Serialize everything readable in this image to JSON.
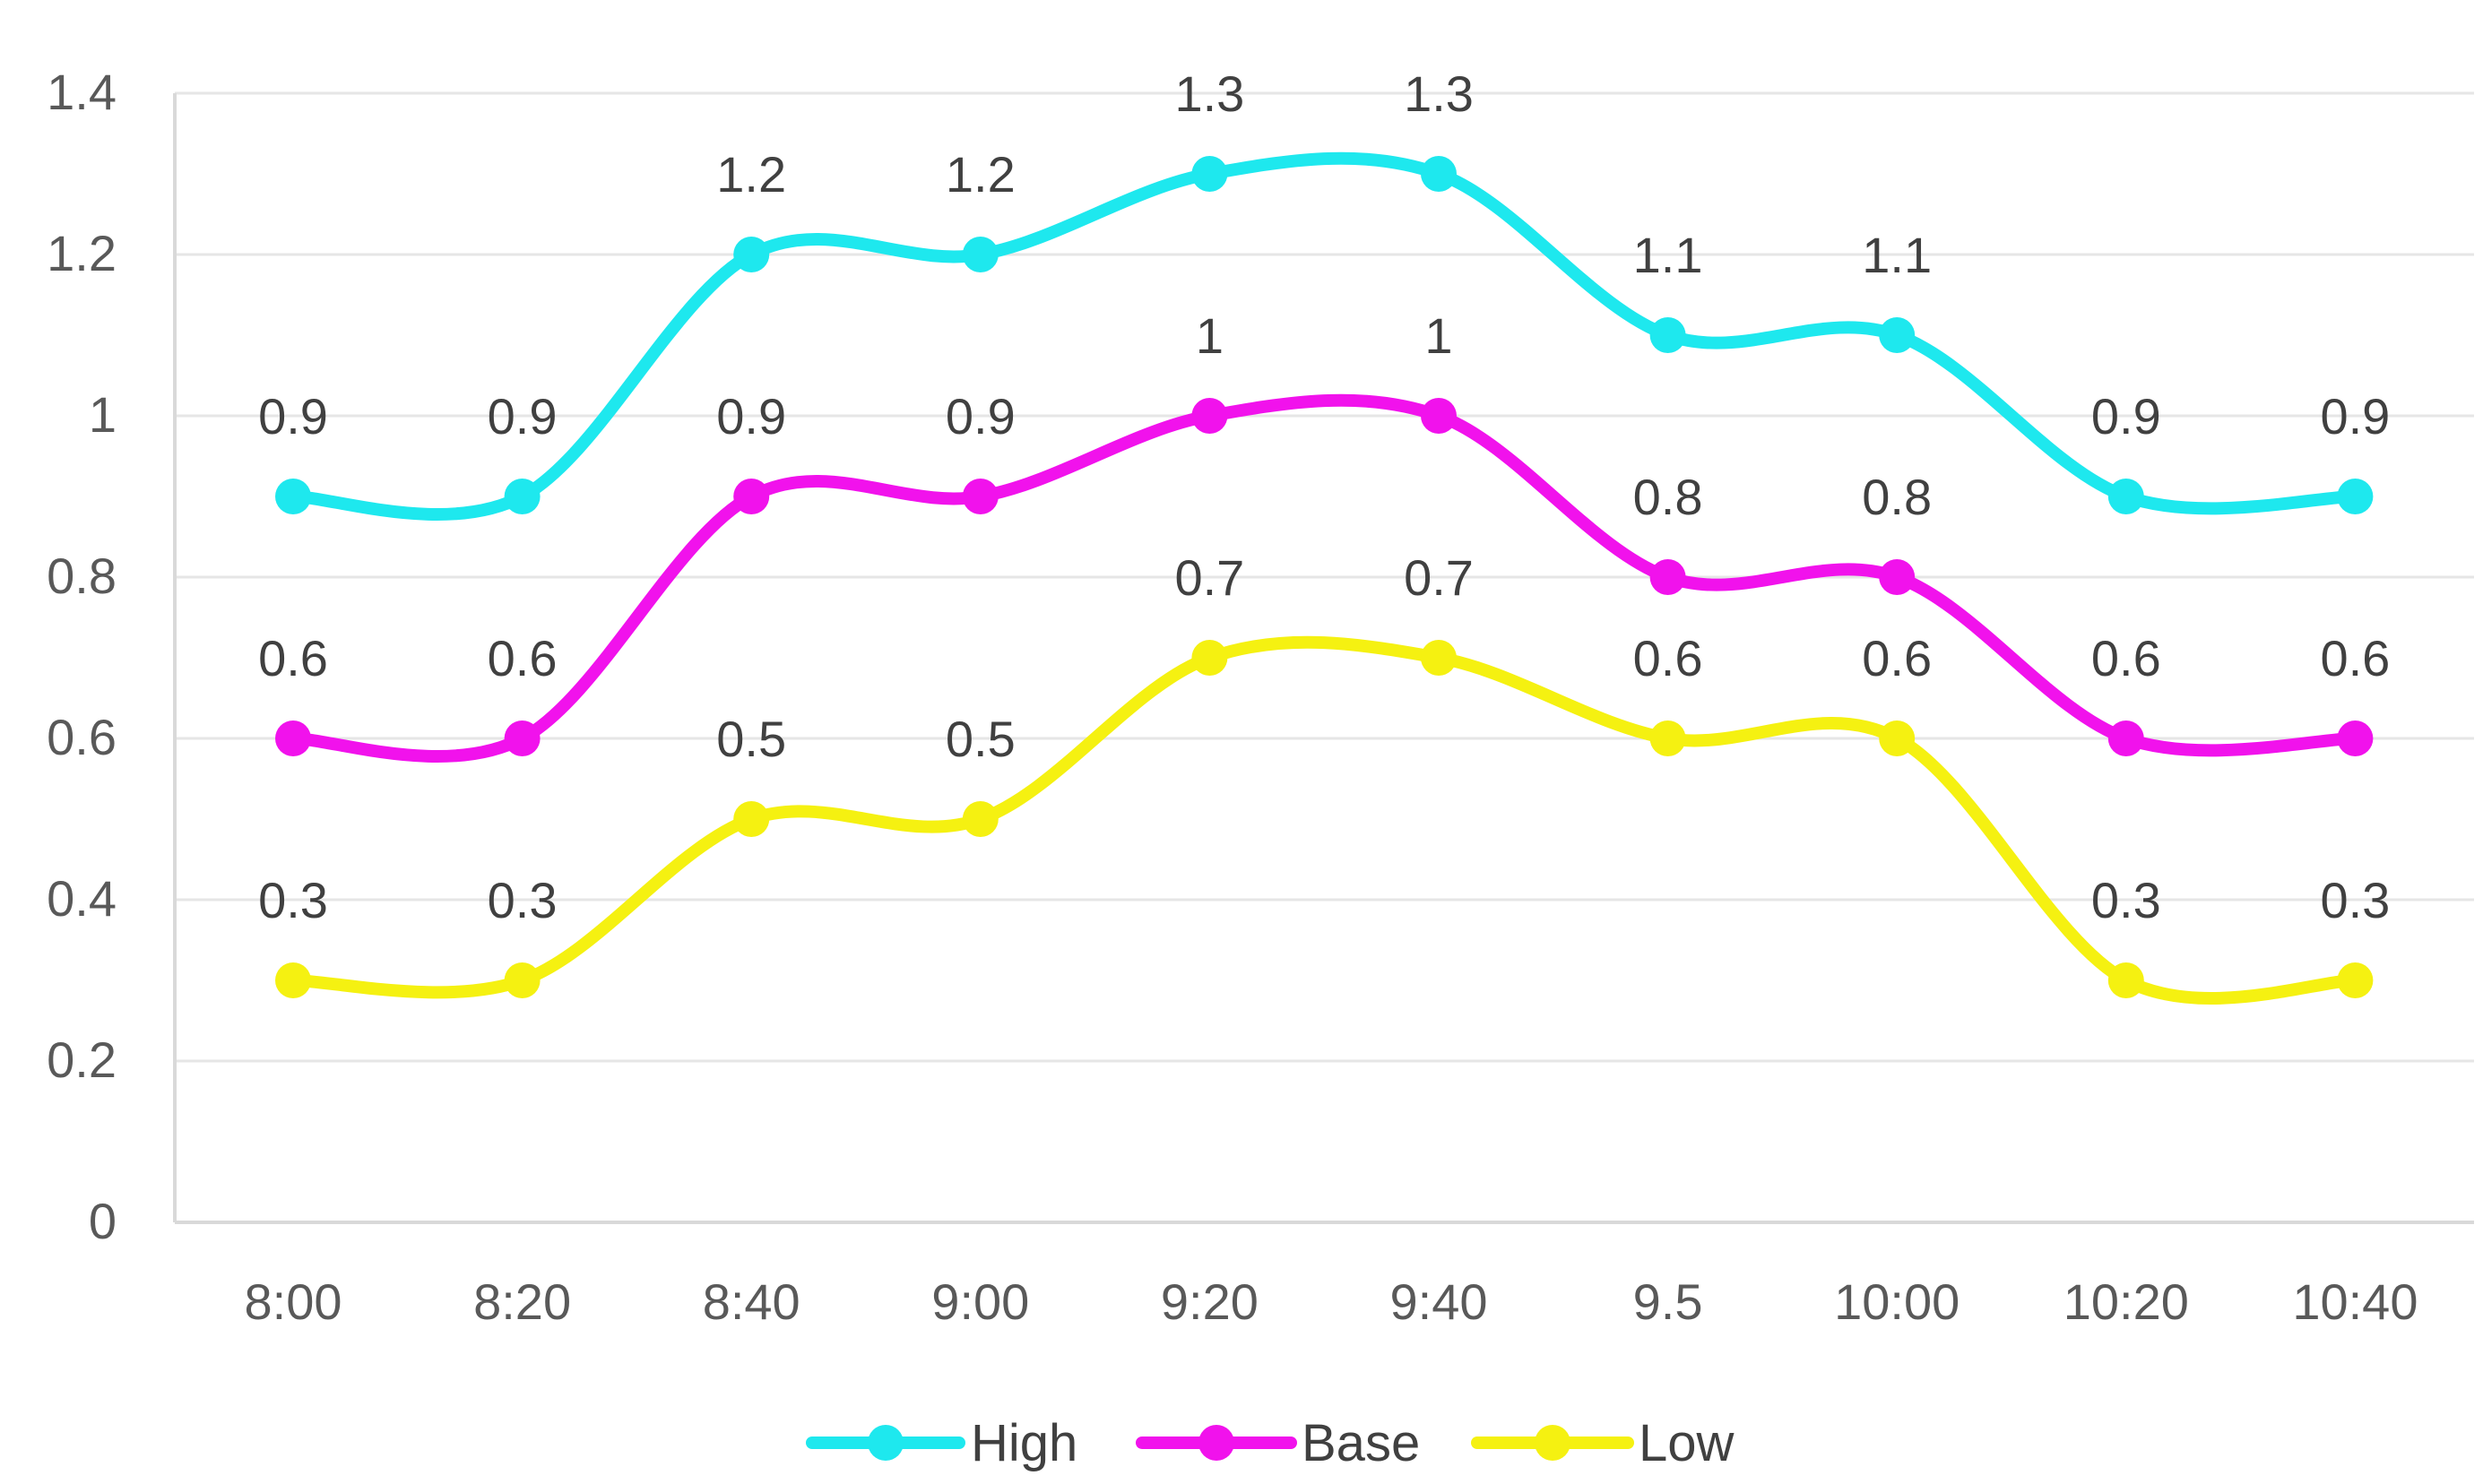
{
  "chart_data": {
    "type": "line",
    "title": "",
    "xlabel": "",
    "ylabel": "",
    "categories": [
      "8:00",
      "8:20",
      "8:40",
      "9:00",
      "9:20",
      "9:40",
      "9.5",
      "10:00",
      "10:20",
      "10:40"
    ],
    "ylim": [
      0,
      1.4
    ],
    "yticks": [
      "0",
      "0.2",
      "0.4",
      "0.6",
      "0.8",
      "1",
      "1.2",
      "1.4"
    ],
    "grid": "horizontal",
    "smooth": true,
    "legend_position": "bottom",
    "series": [
      {
        "name": "High",
        "color": "#1EE8EE",
        "values": [
          0.9,
          0.9,
          1.2,
          1.2,
          1.3,
          1.3,
          1.1,
          1.1,
          0.9,
          0.9
        ],
        "labels": [
          "0.9",
          "0.9",
          "1.2",
          "1.2",
          "1.3",
          "1.3",
          "1.1",
          "1.1",
          "0.9",
          "0.9"
        ]
      },
      {
        "name": "Base",
        "color": "#F112EC",
        "values": [
          0.6,
          0.6,
          0.9,
          0.9,
          1,
          1,
          0.8,
          0.8,
          0.6,
          0.6
        ],
        "labels": [
          "0.6",
          "0.6",
          "0.9",
          "0.9",
          "1",
          "1",
          "0.8",
          "0.8",
          "0.6",
          "0.6"
        ]
      },
      {
        "name": "Low",
        "color": "#F5F111",
        "values": [
          0.3,
          0.3,
          0.5,
          0.5,
          0.7,
          0.7,
          0.6,
          0.6,
          0.3,
          0.3
        ],
        "labels": [
          "0.3",
          "0.3",
          "0.5",
          "0.5",
          "0.7",
          "0.7",
          "0.6",
          "0.6",
          "0.3",
          "0.3"
        ]
      }
    ],
    "axis_color": "#D9D9D9",
    "grid_color": "#E6E6E6"
  }
}
